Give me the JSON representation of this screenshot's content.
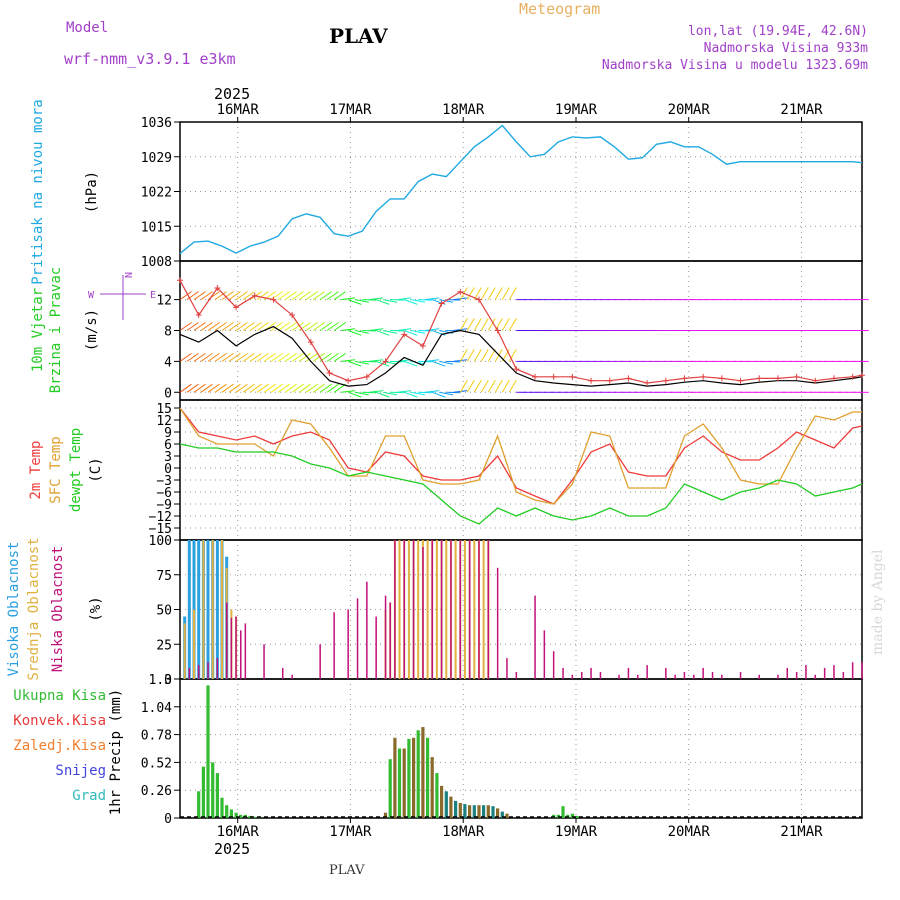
{
  "header": {
    "model_label": "Model",
    "model_name": "wrf-nmm_v3.9.1 e3km",
    "station": "PLAV",
    "title": "Meteogram",
    "lonlat": "lon,lat (19.94E, 42.6N)",
    "elevation": "Nadmorska Visina 933m",
    "model_elevation": "Nadmorska Visina u modelu 1323.69m",
    "year_top": "2025",
    "year_bottom": "2025",
    "footer_station": "PLAV",
    "watermark": "made by Angel"
  },
  "colors": {
    "pressure": "#1fa9e1",
    "temp2m": "#ef3b3b",
    "sfc": "#e0a030",
    "dew": "#22cc22",
    "wind_black": "#000000",
    "wind_red": "#e04040",
    "high_cloud": "#2aa0e0",
    "mid_cloud": "#e0b040",
    "low_cloud": "#c0107a",
    "ukupna": "#33bb33",
    "konvek": "#e83a3a",
    "zaledj": "#f08030",
    "snijeg": "#4444dd",
    "grad": "#33bbbb"
  },
  "chart_data": [
    {
      "type": "line",
      "panel": "pressure",
      "ylabel_main": "Pritisak na nivou mora",
      "unit": "(hPa)",
      "ylim": [
        1008,
        1036
      ],
      "yticks": [
        1008,
        1015,
        1022,
        1029,
        1036
      ],
      "xticks": [
        "16MAR",
        "17MAR",
        "18MAR",
        "19MAR",
        "20MAR",
        "21MAR"
      ],
      "x_hours": [
        0,
        3,
        6,
        9,
        12,
        15,
        18,
        21,
        24,
        27,
        30,
        33,
        36,
        39,
        42,
        45,
        48,
        51,
        54,
        57,
        60,
        63,
        66,
        69,
        72,
        75,
        78,
        81,
        84,
        87,
        90,
        93,
        96,
        99,
        102,
        105,
        108,
        111,
        114,
        117,
        120,
        123,
        126,
        129,
        132,
        135,
        138,
        141,
        144,
        146
      ],
      "values": [
        1009.5,
        1011.8,
        1012.0,
        1011.0,
        1009.6,
        1011.0,
        1011.8,
        1013.0,
        1016.5,
        1017.5,
        1016.8,
        1013.5,
        1013.0,
        1014.0,
        1018.0,
        1020.5,
        1020.5,
        1024.0,
        1025.5,
        1025.0,
        1028.0,
        1031.0,
        1033.0,
        1035.3,
        1032.0,
        1029.0,
        1029.5,
        1032.0,
        1033.0,
        1032.8,
        1033.0,
        1031.0,
        1028.5,
        1028.8,
        1031.5,
        1032.0,
        1031.0,
        1031.0,
        1029.5,
        1027.5,
        1028.0,
        1028.0,
        1028.0,
        1028.0,
        1028.0,
        1028.0,
        1028.0,
        1028.0,
        1028.0,
        1027.8
      ]
    },
    {
      "type": "line",
      "panel": "wind",
      "ylabel_main": "10m Vjetar",
      "ylabel_sub": "Brzina i Pravac",
      "unit": "(m/s)",
      "compass": "N",
      "ylim": [
        -1,
        17
      ],
      "yticks": [
        0,
        4,
        8,
        12
      ],
      "x_hours": [
        0,
        4,
        8,
        12,
        16,
        20,
        24,
        28,
        32,
        36,
        40,
        44,
        48,
        52,
        56,
        60,
        64,
        68,
        72,
        76,
        80,
        84,
        88,
        92,
        96,
        100,
        104,
        108,
        112,
        116,
        120,
        124,
        128,
        132,
        136,
        140,
        144,
        146
      ],
      "series": [
        {
          "name": "mean",
          "values": [
            7.5,
            6.5,
            8.0,
            6.0,
            7.5,
            8.5,
            7.0,
            4.0,
            1.5,
            0.8,
            1.0,
            2.5,
            4.5,
            3.5,
            7.5,
            8.0,
            7.5,
            5.0,
            2.5,
            1.5,
            1.2,
            1.0,
            0.8,
            1.0,
            1.2,
            0.8,
            1.0,
            1.3,
            1.5,
            1.2,
            1.0,
            1.3,
            1.5,
            1.5,
            1.2,
            1.5,
            1.8,
            2.0
          ]
        },
        {
          "name": "gust",
          "values": [
            14.5,
            10.0,
            13.5,
            11.0,
            12.5,
            12.0,
            10.0,
            6.5,
            2.5,
            1.5,
            2.0,
            4.0,
            7.5,
            6.0,
            11.5,
            13.0,
            12.0,
            8.0,
            3.0,
            2.0,
            2.0,
            2.0,
            1.5,
            1.5,
            1.8,
            1.2,
            1.5,
            1.8,
            2.0,
            1.8,
            1.5,
            1.8,
            1.8,
            2.0,
            1.5,
            1.8,
            2.0,
            2.2
          ]
        }
      ],
      "arrow_rows": [
        0,
        4,
        8,
        12
      ]
    },
    {
      "type": "line",
      "panel": "temperature",
      "ylabel_main": "2m Temp",
      "ylabel_mid": "SFC Temp",
      "ylabel_sub": "dewpt Temp",
      "unit": "(C)",
      "ylim": [
        -18,
        17
      ],
      "yticks": [
        -15,
        -12,
        -9,
        -6,
        -3,
        0,
        3,
        6,
        9,
        12,
        15
      ],
      "x_hours": [
        0,
        4,
        8,
        12,
        16,
        20,
        24,
        28,
        32,
        36,
        40,
        44,
        48,
        52,
        56,
        60,
        64,
        68,
        72,
        76,
        80,
        84,
        88,
        92,
        96,
        100,
        104,
        108,
        112,
        116,
        120,
        124,
        128,
        132,
        136,
        140,
        144,
        146
      ],
      "series": [
        {
          "name": "2m Temp",
          "values": [
            15,
            9,
            8,
            7,
            8,
            6,
            8,
            9,
            7,
            0,
            -1,
            4,
            3,
            -2,
            -3,
            -3,
            -2,
            3,
            -5,
            -7,
            -9,
            -3,
            4,
            6,
            -1,
            -2,
            -2,
            5,
            8,
            4,
            2,
            2,
            5,
            9,
            7,
            5,
            10,
            10.5
          ]
        },
        {
          "name": "SFC Temp",
          "values": [
            15,
            8,
            6,
            6,
            6,
            3,
            12,
            11,
            5,
            -2,
            -2,
            8,
            8,
            -3,
            -4,
            -4,
            -3,
            8,
            -6,
            -8,
            -9,
            -4,
            9,
            8,
            -5,
            -5,
            -5,
            8,
            11,
            5,
            -3,
            -4,
            -4,
            5,
            13,
            12,
            14,
            14
          ]
        },
        {
          "name": "dewpt Temp",
          "values": [
            6,
            5,
            5,
            4,
            4,
            4,
            3,
            1,
            0,
            -2,
            -1,
            -2,
            -3,
            -4,
            -8,
            -12,
            -14,
            -10,
            -12,
            -10,
            -12,
            -13,
            -12,
            -10,
            -12,
            -12,
            -10,
            -4,
            -6,
            -8,
            -6,
            -5,
            -3,
            -4,
            -7,
            -6,
            -5,
            -4
          ]
        }
      ]
    },
    {
      "type": "bar",
      "panel": "cloud",
      "ylabel_high": "Visoka Oblacnost",
      "ylabel_mid": "Srednja Oblacnost",
      "ylabel_low": "Niska Oblacnost",
      "unit": "(%)",
      "ylim": [
        0,
        100
      ],
      "yticks": [
        0,
        25,
        50,
        75,
        100
      ],
      "series": [
        {
          "name": "Visoka",
          "x_hours": [
            1,
            2,
            3,
            4,
            5,
            6,
            7,
            8,
            9,
            10
          ],
          "values": [
            45,
            100,
            100,
            100,
            100,
            100,
            100,
            100,
            100,
            88
          ]
        },
        {
          "name": "Srednja",
          "x_hours": [
            1,
            3,
            5,
            7,
            9,
            10,
            11,
            12,
            44,
            45,
            46,
            47,
            48,
            49,
            50,
            51,
            52,
            53,
            54,
            55,
            56,
            57,
            58,
            59,
            60,
            61,
            62,
            63,
            64,
            65,
            66
          ],
          "values": [
            40,
            50,
            100,
            100,
            100,
            80,
            50,
            45,
            50,
            55,
            100,
            100,
            100,
            100,
            100,
            100,
            100,
            100,
            100,
            100,
            100,
            100,
            100,
            100,
            100,
            100,
            100,
            100,
            100,
            100,
            100
          ]
        },
        {
          "name": "Niska",
          "x_hours": [
            2,
            4,
            6,
            8,
            10,
            11,
            12,
            13,
            14,
            18,
            22,
            24,
            30,
            33,
            36,
            38,
            40,
            42,
            44,
            45,
            46,
            48,
            50,
            52,
            54,
            56,
            58,
            60,
            62,
            64,
            66,
            68,
            70,
            72,
            76,
            78,
            80,
            82,
            84,
            86,
            88,
            90,
            94,
            96,
            98,
            100,
            104,
            106,
            108,
            110,
            112,
            114,
            116,
            120,
            124,
            128,
            130,
            132,
            134,
            136,
            138,
            140,
            142,
            144,
            146
          ],
          "values": [
            8,
            10,
            12,
            15,
            55,
            44,
            45,
            35,
            40,
            25,
            8,
            3,
            25,
            48,
            50,
            58,
            70,
            45,
            60,
            55,
            100,
            100,
            100,
            95,
            100,
            100,
            100,
            100,
            100,
            100,
            100,
            80,
            15,
            5,
            60,
            35,
            20,
            8,
            3,
            5,
            8,
            5,
            3,
            8,
            3,
            10,
            8,
            3,
            5,
            3,
            8,
            5,
            3,
            5,
            3,
            3,
            8,
            5,
            10,
            3,
            8,
            10,
            5,
            12,
            12
          ]
        }
      ]
    },
    {
      "type": "bar",
      "panel": "precip",
      "legend": [
        "Ukupna Kisa",
        "Konvek.Kisa",
        "Zaledj.Kisa",
        "Snijeg",
        "Grad"
      ],
      "ylabel_main": "1hr Precip",
      "unit": "(mm)",
      "ylim": [
        0,
        1.3
      ],
      "yticks": [
        0,
        0.26,
        0.52,
        0.78,
        1.04,
        1.3
      ],
      "ytick_labels": [
        "0",
        "0.26",
        "0.52",
        "0.78",
        "1.04",
        "1.3"
      ],
      "series": [
        {
          "name": "Ukupna",
          "x_hours": [
            4,
            5,
            6,
            7,
            8,
            9,
            10,
            11,
            12,
            13,
            14,
            15,
            16,
            17
          ],
          "values": [
            0.25,
            0.48,
            1.24,
            0.52,
            0.42,
            0.19,
            0.12,
            0.08,
            0.05,
            0.03,
            0.03,
            0.02,
            0.01,
            0.01
          ]
        },
        {
          "name": "Konvek",
          "x_hours": [
            44,
            45,
            46,
            47,
            48,
            49,
            50,
            51,
            52,
            53,
            54,
            55,
            56,
            57,
            58,
            59,
            60,
            61,
            62,
            63,
            64,
            65,
            66,
            67,
            68,
            69,
            70
          ],
          "values": [
            0.05,
            0.55,
            0.75,
            0.65,
            0.65,
            0.74,
            0.75,
            0.82,
            0.85,
            0.75,
            0.57,
            0.42,
            0.3,
            0.25,
            0.2,
            0.16,
            0.14,
            0.13,
            0.12,
            0.12,
            0.12,
            0.12,
            0.12,
            0.11,
            0.09,
            0.06,
            0.04
          ]
        },
        {
          "name": "Ukupna2",
          "x_hours": [
            80,
            81,
            82,
            83,
            84,
            85
          ],
          "values": [
            0.03,
            0.03,
            0.11,
            0.03,
            0.04,
            0.02
          ]
        }
      ]
    }
  ]
}
